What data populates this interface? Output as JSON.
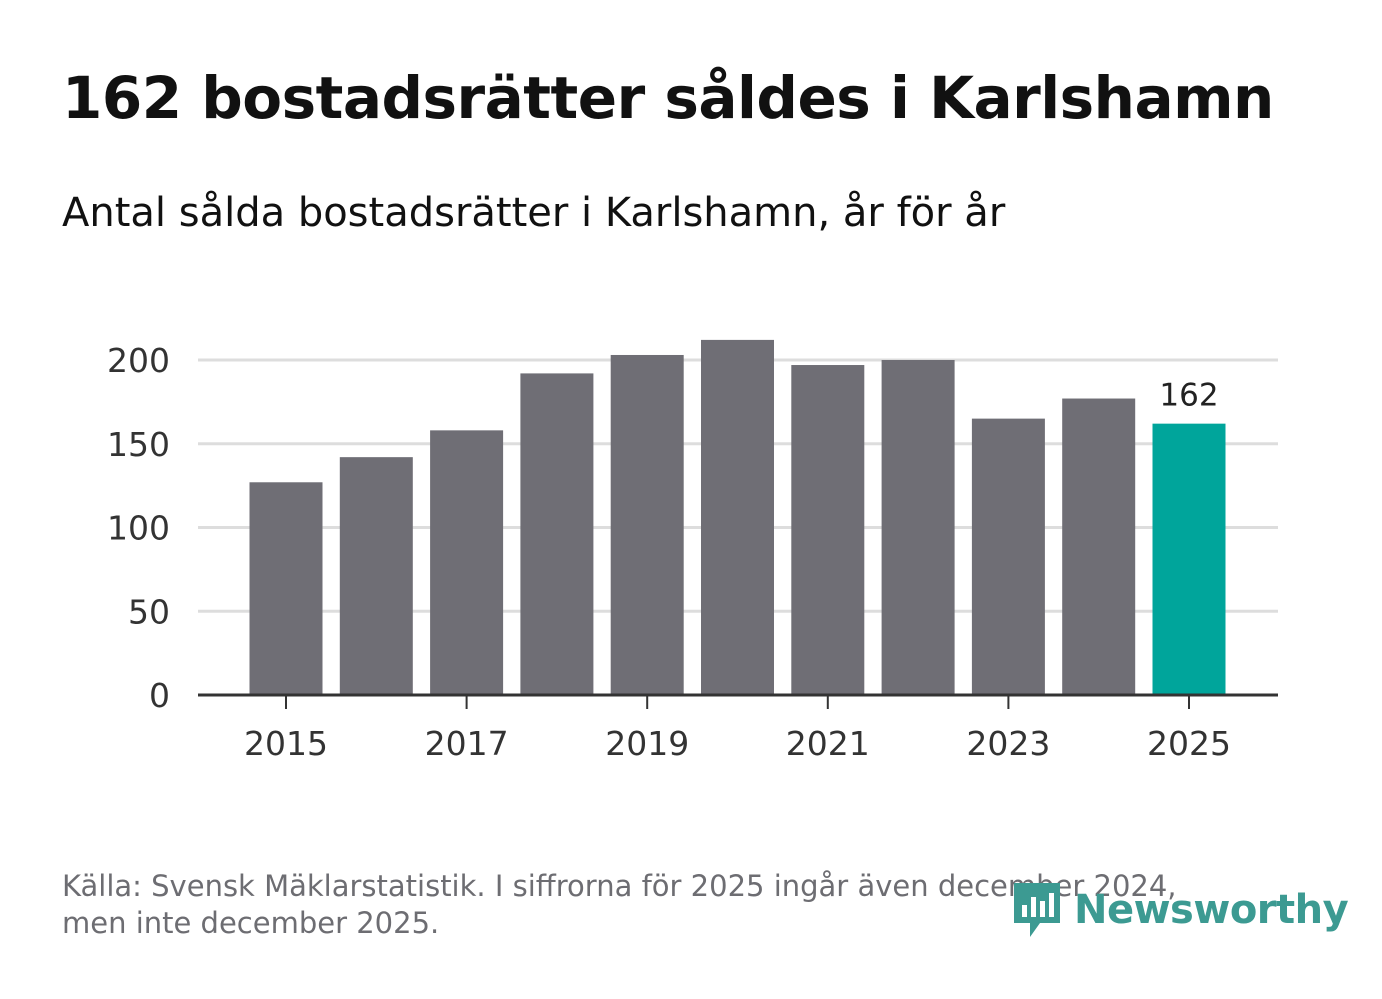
{
  "header": {
    "title": "162 bostadsrätter såldes i Karlshamn",
    "subtitle": "Antal sålda bostadsrätter i Karlshamn, år för år"
  },
  "footer": {
    "source_line1": "Källa: Svensk Mäklarstatistik. I siffrorna för 2025 ingår även december 2024,",
    "source_line2": "men inte december 2025.",
    "logo_text": "Newsworthy"
  },
  "colors": {
    "bar": "#6f6e75",
    "highlight": "#00a59b",
    "grid": "#dddddd",
    "axis": "#333333",
    "logo": "#3c9a92"
  },
  "chart_data": {
    "type": "bar",
    "title": "Antal sålda bostadsrätter i Karlshamn, år för år",
    "xlabel": "",
    "ylabel": "",
    "categories": [
      "2015",
      "2016",
      "2017",
      "2018",
      "2019",
      "2020",
      "2021",
      "2022",
      "2023",
      "2024",
      "2025"
    ],
    "values": [
      127,
      142,
      158,
      192,
      203,
      212,
      197,
      200,
      165,
      177,
      162
    ],
    "highlight_index": 10,
    "data_label": "162",
    "x_ticks": [
      "2015",
      "2017",
      "2019",
      "2021",
      "2023",
      "2025"
    ],
    "y_ticks": [
      0,
      50,
      100,
      150,
      200
    ],
    "ylim": [
      0,
      225
    ],
    "grid": true,
    "legend": "none"
  }
}
